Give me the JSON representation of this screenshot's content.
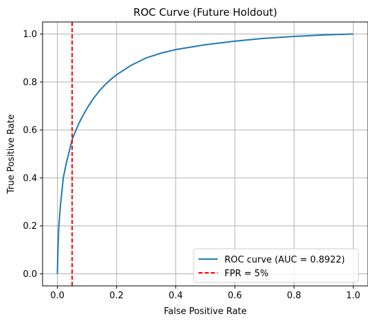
{
  "chart_data": {
    "type": "line",
    "title": "ROC Curve (Future Holdout)",
    "xlabel": "False Positive Rate",
    "ylabel": "True Positive Rate",
    "xlim": [
      -0.05,
      1.05
    ],
    "ylim": [
      -0.05,
      1.05
    ],
    "xticks": [
      0.0,
      0.2,
      0.4,
      0.6,
      0.8,
      1.0
    ],
    "yticks": [
      0.0,
      0.2,
      0.4,
      0.6,
      0.8,
      1.0
    ],
    "xtick_labels": [
      "0.0",
      "0.2",
      "0.4",
      "0.6",
      "0.8",
      "1.0"
    ],
    "ytick_labels": [
      "0.0",
      "0.2",
      "0.4",
      "0.6",
      "0.8",
      "1.0"
    ],
    "grid": true,
    "legend_position": "lower-right",
    "series": [
      {
        "name": "ROC curve (AUC = 0.8922)",
        "color": "#1f77b4",
        "style": "solid",
        "x": [
          0.0,
          0.002,
          0.005,
          0.01,
          0.015,
          0.02,
          0.03,
          0.04,
          0.05,
          0.06,
          0.07,
          0.08,
          0.1,
          0.12,
          0.14,
          0.16,
          0.18,
          0.2,
          0.25,
          0.3,
          0.35,
          0.4,
          0.45,
          0.5,
          0.6,
          0.7,
          0.8,
          0.9,
          1.0
        ],
        "y": [
          0.0,
          0.1,
          0.2,
          0.28,
          0.34,
          0.4,
          0.46,
          0.51,
          0.56,
          0.59,
          0.62,
          0.645,
          0.69,
          0.728,
          0.76,
          0.787,
          0.81,
          0.83,
          0.87,
          0.9,
          0.92,
          0.935,
          0.945,
          0.955,
          0.97,
          0.982,
          0.99,
          0.996,
          1.0
        ]
      },
      {
        "name": "FPR = 5%",
        "color": "#ff0000",
        "style": "dashed",
        "x": [
          0.05,
          0.05
        ],
        "y": [
          -0.05,
          1.05
        ]
      }
    ]
  }
}
